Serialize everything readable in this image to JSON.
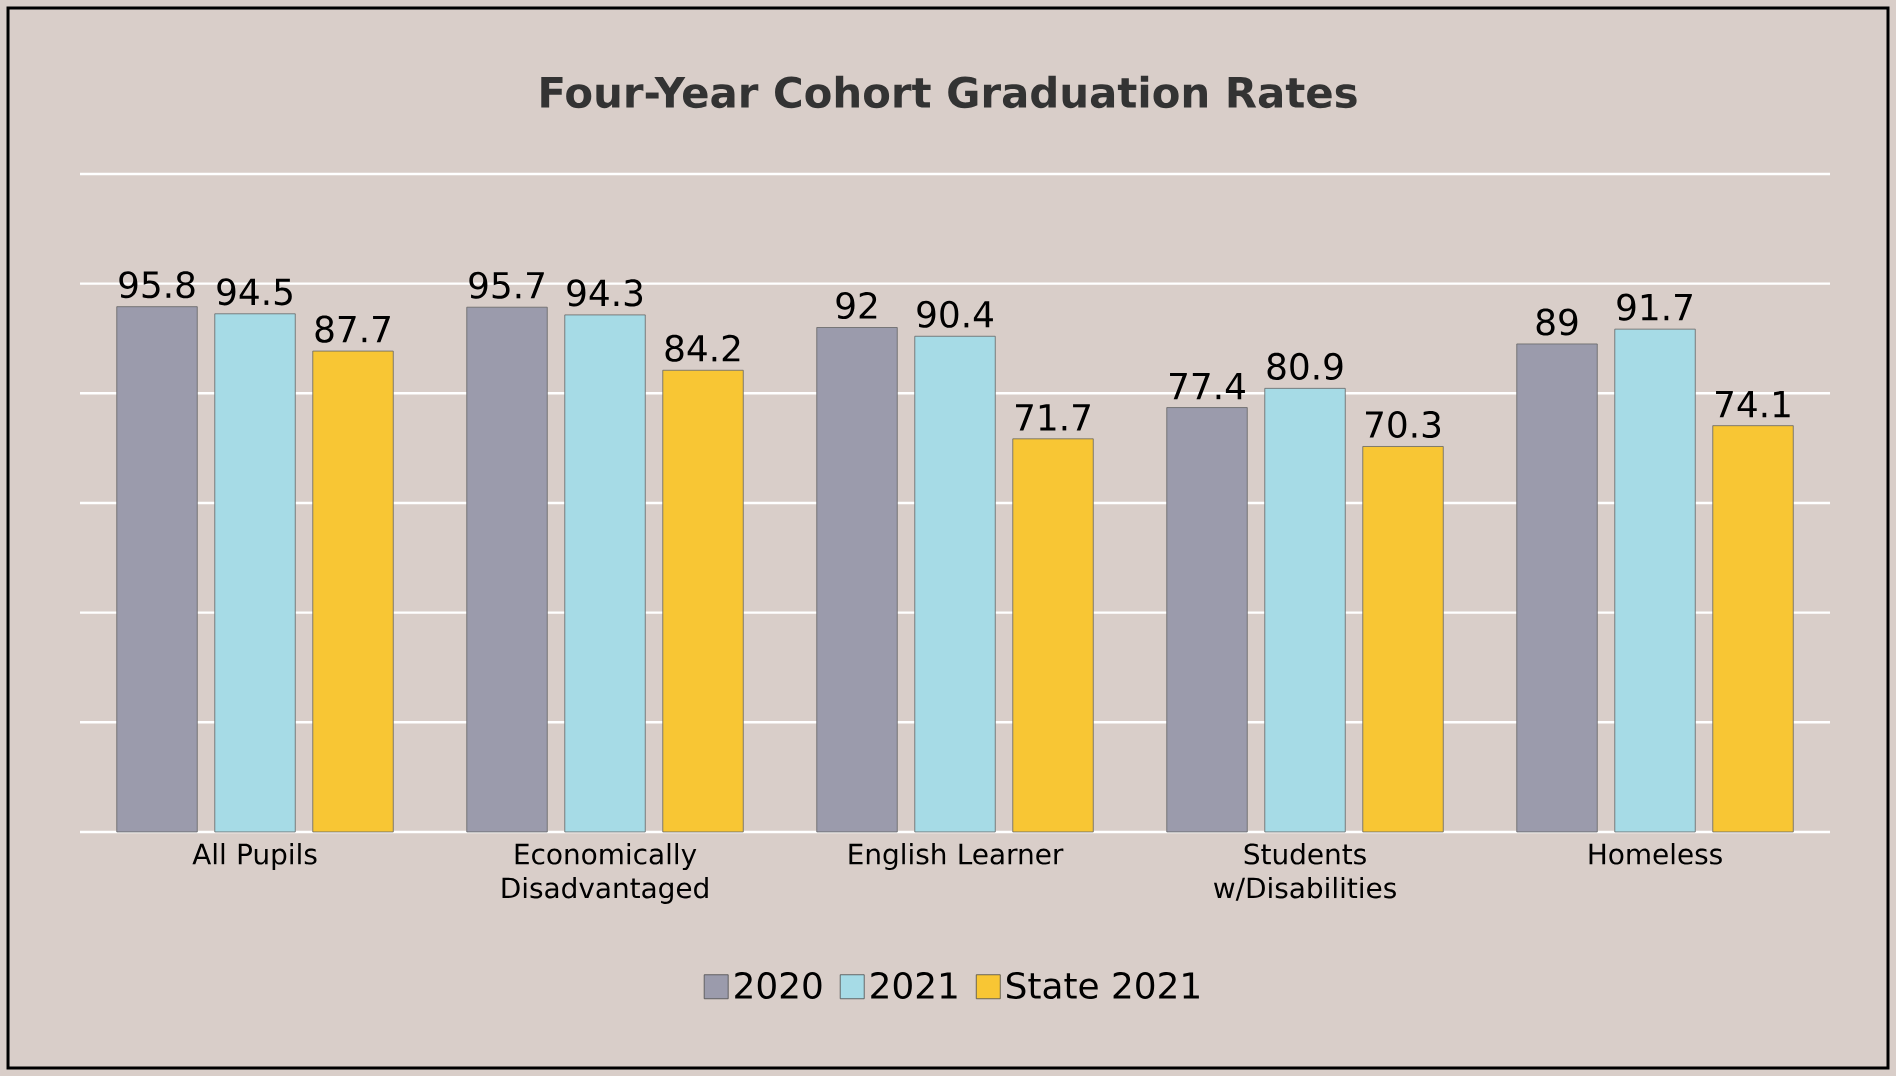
{
  "chart_data": {
    "type": "bar",
    "title": "Four-Year Cohort Graduation Rates",
    "categories": [
      "All Pupils",
      "Economically Disadvantaged",
      "English Learner",
      "Students w/Disabilities",
      "Homeless"
    ],
    "series": [
      {
        "name": "2020",
        "color": "#9b9bac",
        "values": [
          95.8,
          95.7,
          92,
          77.4,
          89
        ]
      },
      {
        "name": "2021",
        "color": "#a6dbe6",
        "values": [
          94.5,
          94.3,
          90.4,
          80.9,
          91.7
        ]
      },
      {
        "name": "State 2021",
        "color": "#f8c634",
        "values": [
          87.7,
          84.2,
          71.7,
          70.3,
          74.1
        ]
      }
    ],
    "ylim": [
      0,
      120
    ],
    "yticks": [
      {
        "value": 0,
        "label": null
      },
      {
        "value": 20,
        "label": null
      },
      {
        "value": 40,
        "label": null
      },
      {
        "value": 60,
        "label": null
      },
      {
        "value": 80,
        "label": null
      },
      {
        "value": 100,
        "label": null
      },
      {
        "value": 120,
        "label": null
      }
    ],
    "tick_labels": "x",
    "grid": "y",
    "legend": "bottom",
    "data_labels": true
  }
}
